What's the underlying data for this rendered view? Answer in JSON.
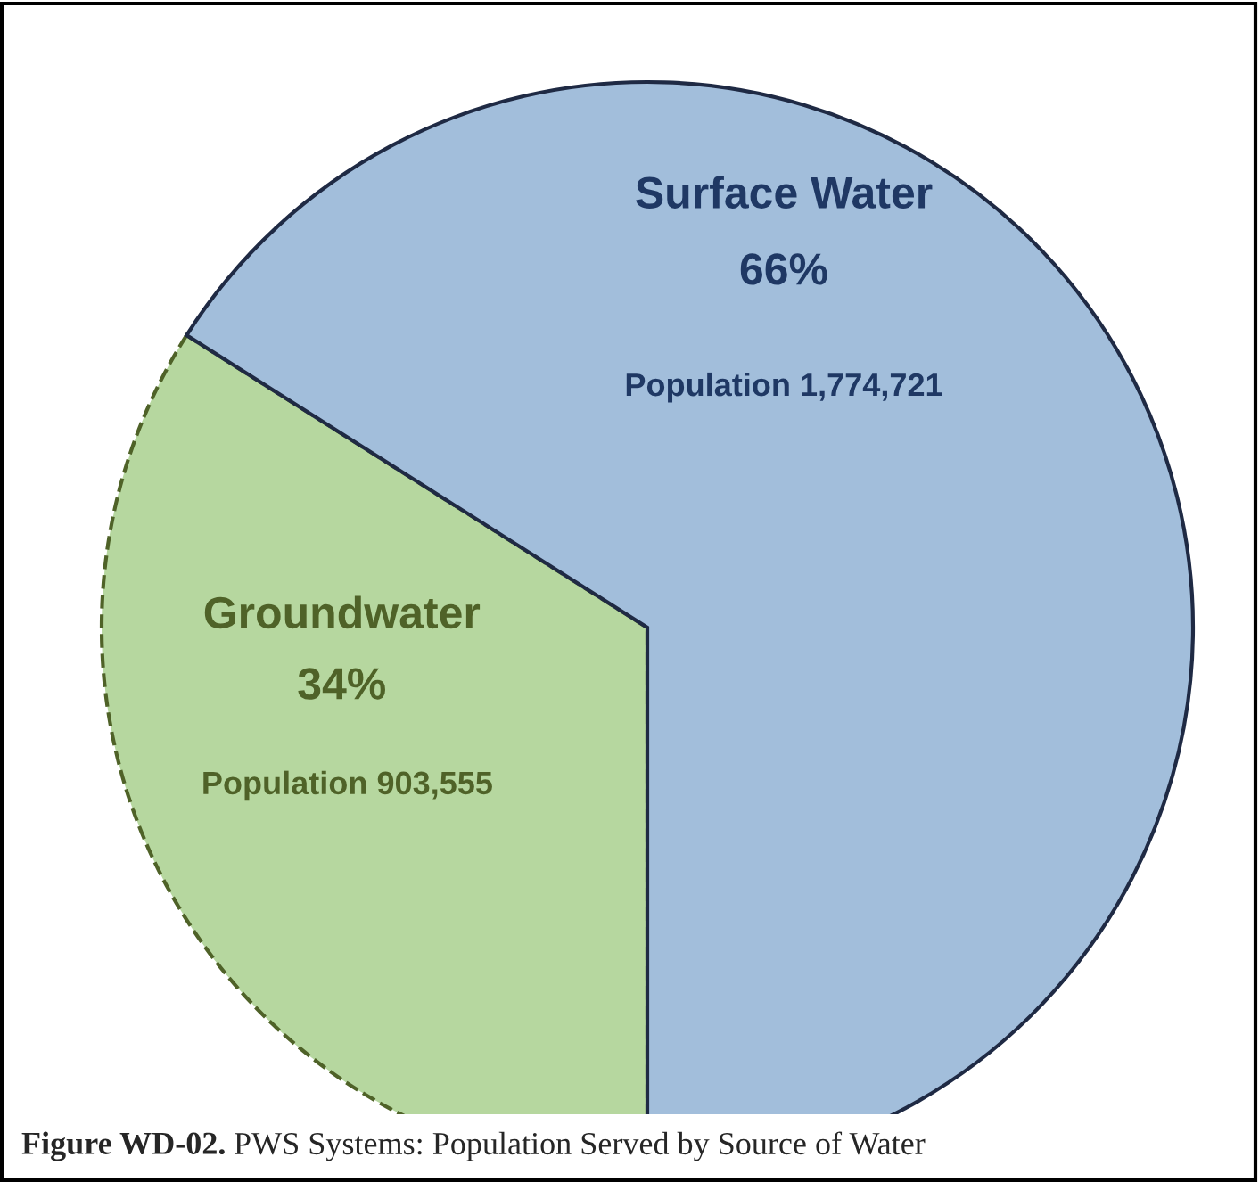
{
  "chart_data": {
    "type": "pie",
    "title": "Figure WD-02. PWS Systems: Population Served by Source of Water",
    "categories": [
      "Groundwater",
      "Surface Water"
    ],
    "values": [
      34,
      66
    ],
    "colors": [
      "#b6d79f",
      "#a2bedb"
    ],
    "value_labels": [
      "34%",
      "66%"
    ],
    "annotations": [
      "Population 903,555",
      "Population 1,774,721"
    ]
  }
}
